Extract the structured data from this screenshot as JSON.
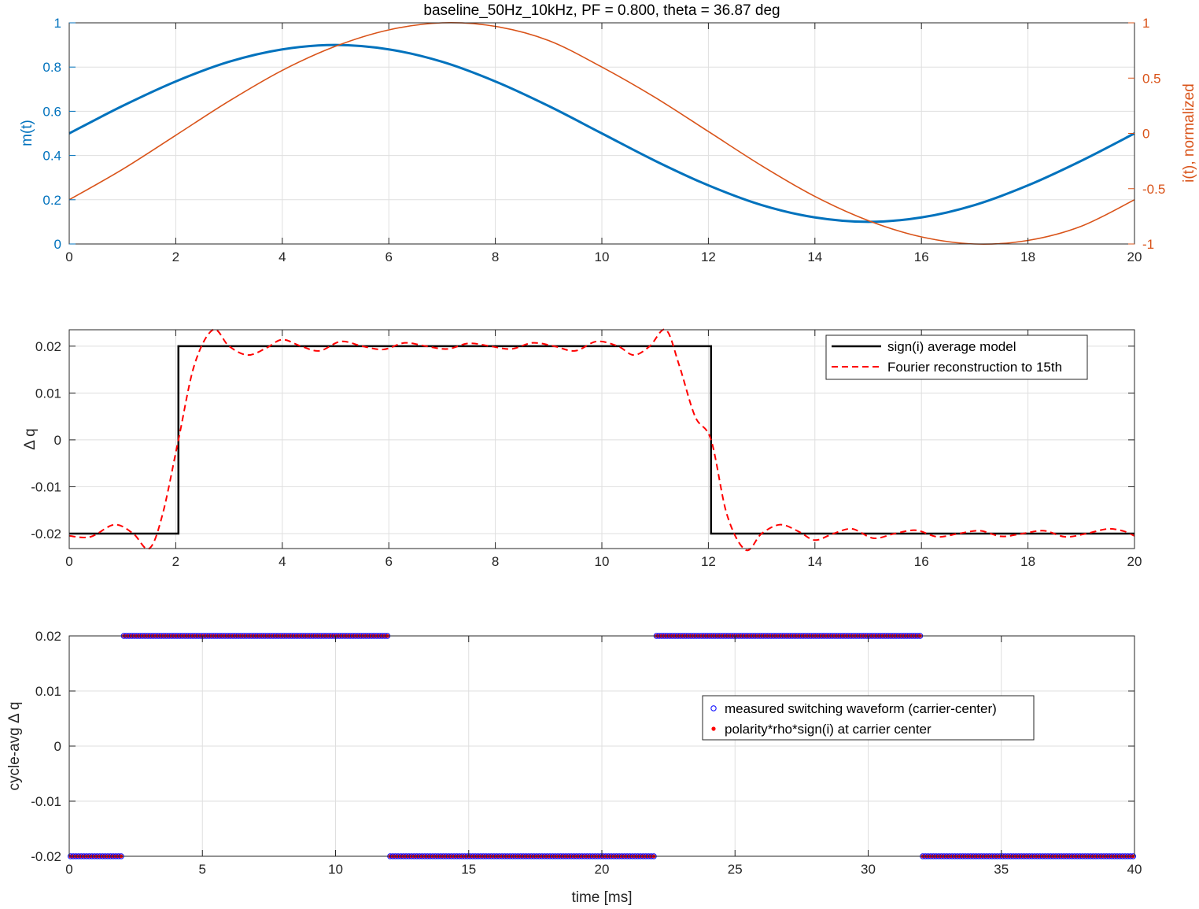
{
  "chart_data": [
    {
      "type": "line",
      "title": "baseline_50Hz_10kHz, PF = 0.800, theta = 36.87 deg",
      "xlabel": "",
      "ylabel": "m(t)",
      "y2label": "i(t), normalized",
      "xlim": [
        0,
        20
      ],
      "ylim": [
        0,
        1
      ],
      "y2lim": [
        -1,
        1
      ],
      "xticks": [
        "0",
        "2",
        "4",
        "6",
        "8",
        "10",
        "12",
        "14",
        "16",
        "18",
        "20"
      ],
      "yticks": [
        "0",
        "0.2",
        "0.4",
        "0.6",
        "0.8",
        "1"
      ],
      "y2ticks": [
        "-1",
        "-0.5",
        "0",
        "0.5",
        "1"
      ],
      "grid": true,
      "colors": {
        "left": "#0072BD",
        "right": "#D95319"
      },
      "series": [
        {
          "axis": "left",
          "style": "thick-solid",
          "color": "#0072BD",
          "x": [
            0,
            1,
            2,
            3,
            4,
            5,
            6,
            7,
            8,
            9,
            10,
            11,
            12,
            13,
            14,
            15,
            16,
            17,
            18,
            19,
            20
          ],
          "y": [
            0.5,
            0.624,
            0.735,
            0.824,
            0.88,
            0.9,
            0.88,
            0.824,
            0.735,
            0.624,
            0.5,
            0.376,
            0.265,
            0.176,
            0.12,
            0.1,
            0.12,
            0.176,
            0.265,
            0.376,
            0.5
          ]
        },
        {
          "axis": "right",
          "style": "solid",
          "color": "#D95319",
          "x": [
            0,
            1,
            2,
            3,
            4,
            5,
            6,
            7,
            8,
            9,
            10,
            11,
            12,
            13,
            14,
            15,
            16,
            17,
            18,
            19,
            20
          ],
          "y": [
            -0.6,
            -0.325,
            -0.017,
            0.292,
            0.57,
            0.788,
            0.936,
            1.0,
            0.968,
            0.84,
            0.6,
            0.325,
            0.017,
            -0.292,
            -0.57,
            -0.788,
            -0.936,
            -1.0,
            -0.968,
            -0.84,
            -0.6
          ]
        }
      ]
    },
    {
      "type": "line",
      "title": "",
      "xlabel": "",
      "ylabel": "Δ q",
      "xlim": [
        0,
        20
      ],
      "ylim": [
        -0.0232,
        0.0235
      ],
      "xticks": [
        "0",
        "2",
        "4",
        "6",
        "8",
        "10",
        "12",
        "14",
        "16",
        "18",
        "20"
      ],
      "yticks": [
        "-0.02",
        "-0.01",
        "0",
        "0.01",
        "0.02"
      ],
      "grid": true,
      "legend": "top-right",
      "series": [
        {
          "name": "sign(i) average model",
          "style": "solid",
          "color": "#000000",
          "x": [
            0,
            2.05,
            2.05,
            12.05,
            12.05,
            20
          ],
          "y": [
            -0.02,
            -0.02,
            0.02,
            0.02,
            -0.02,
            -0.02
          ]
        },
        {
          "name": "Fourier reconstruction to 15th",
          "style": "dashed",
          "color": "#FF0000",
          "x": [
            0,
            0.4,
            0.85,
            1.2,
            1.5,
            1.75,
            2.05,
            2.35,
            2.7,
            3.0,
            3.35,
            3.7,
            4.0,
            4.35,
            4.7,
            5.1,
            5.5,
            5.9,
            6.3,
            6.7,
            7.1,
            7.5,
            7.9,
            8.3,
            8.7,
            9.1,
            9.5,
            9.9,
            10.3,
            10.6,
            10.9,
            11.2,
            11.45,
            11.75,
            12.05,
            12.35,
            12.7,
            13.0,
            13.35,
            13.7,
            14.0,
            14.35,
            14.7,
            15.1,
            15.5,
            15.9,
            16.3,
            16.7,
            17.1,
            17.5,
            17.9,
            18.3,
            18.7,
            19.1,
            19.5,
            19.8,
            20
          ],
          "y": [
            -0.0205,
            -0.0207,
            -0.0181,
            -0.02,
            -0.0232,
            -0.016,
            0.0,
            0.016,
            0.0235,
            0.02,
            0.0181,
            0.0196,
            0.0214,
            0.02,
            0.019,
            0.021,
            0.02,
            0.0193,
            0.0207,
            0.02,
            0.0194,
            0.0206,
            0.02,
            0.0194,
            0.0207,
            0.02,
            0.019,
            0.021,
            0.02,
            0.0181,
            0.02,
            0.0235,
            0.016,
            0.005,
            -0.0,
            -0.016,
            -0.0235,
            -0.02,
            -0.0181,
            -0.0196,
            -0.0214,
            -0.02,
            -0.019,
            -0.021,
            -0.02,
            -0.0193,
            -0.0207,
            -0.02,
            -0.0194,
            -0.0206,
            -0.02,
            -0.0194,
            -0.0207,
            -0.02,
            -0.019,
            -0.0195,
            -0.0205
          ]
        }
      ]
    },
    {
      "type": "scatter",
      "title": "",
      "xlabel": "time [ms]",
      "ylabel": "cycle-avg Δ q",
      "xlim": [
        0,
        40
      ],
      "ylim": [
        -0.02,
        0.02
      ],
      "xticks": [
        "0",
        "5",
        "10",
        "15",
        "20",
        "25",
        "30",
        "35",
        "40"
      ],
      "yticks": [
        "-0.02",
        "-0.01",
        "0",
        "0.01",
        "0.02"
      ],
      "grid": true,
      "legend": "center-right",
      "sample_period_ms": 0.1,
      "segments": [
        {
          "x_start": 0.05,
          "x_end": 1.95,
          "value": -0.02
        },
        {
          "x_start": 2.05,
          "x_end": 11.95,
          "value": 0.02
        },
        {
          "x_start": 12.05,
          "x_end": 21.95,
          "value": -0.02
        },
        {
          "x_start": 22.05,
          "x_end": 31.95,
          "value": 0.02
        },
        {
          "x_start": 32.05,
          "x_end": 39.95,
          "value": -0.02
        }
      ],
      "series": [
        {
          "name": "measured switching waveform (carrier-center)",
          "marker": "open-circle",
          "color": "#0000FF"
        },
        {
          "name": "polarity*rho*sign(i) at carrier center",
          "marker": "filled-dot",
          "color": "#FF0000"
        }
      ]
    }
  ]
}
